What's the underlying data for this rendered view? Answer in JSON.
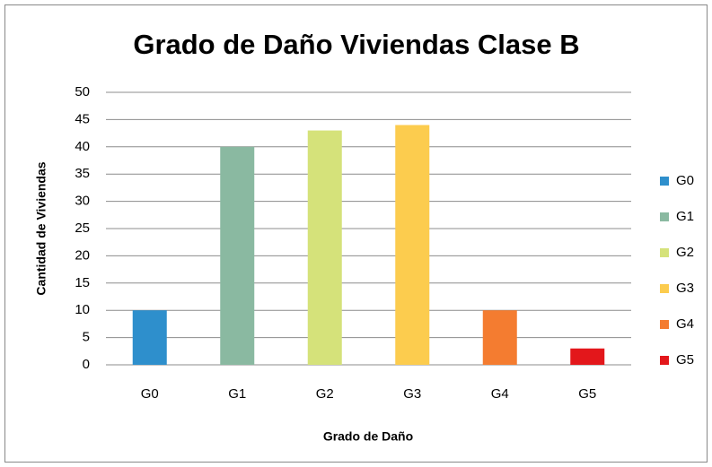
{
  "chart_data": {
    "type": "bar",
    "title": "Grado de Daño Viviendas Clase B",
    "x_label": "Grado de Daño",
    "y_label": "Cantidad de Viviendas",
    "categories": [
      "G0",
      "G1",
      "G2",
      "G3",
      "G4",
      "G5"
    ],
    "values": [
      10,
      40,
      43,
      44,
      10,
      3
    ],
    "colors": [
      "#2e8fcc",
      "#8ab9a1",
      "#d5e27a",
      "#fccc4e",
      "#f47c30",
      "#e3171b"
    ],
    "ylim": [
      0,
      50
    ],
    "yticks": [
      0,
      5,
      10,
      15,
      20,
      25,
      30,
      35,
      40,
      45,
      50
    ],
    "grid": true,
    "legend": "right"
  }
}
